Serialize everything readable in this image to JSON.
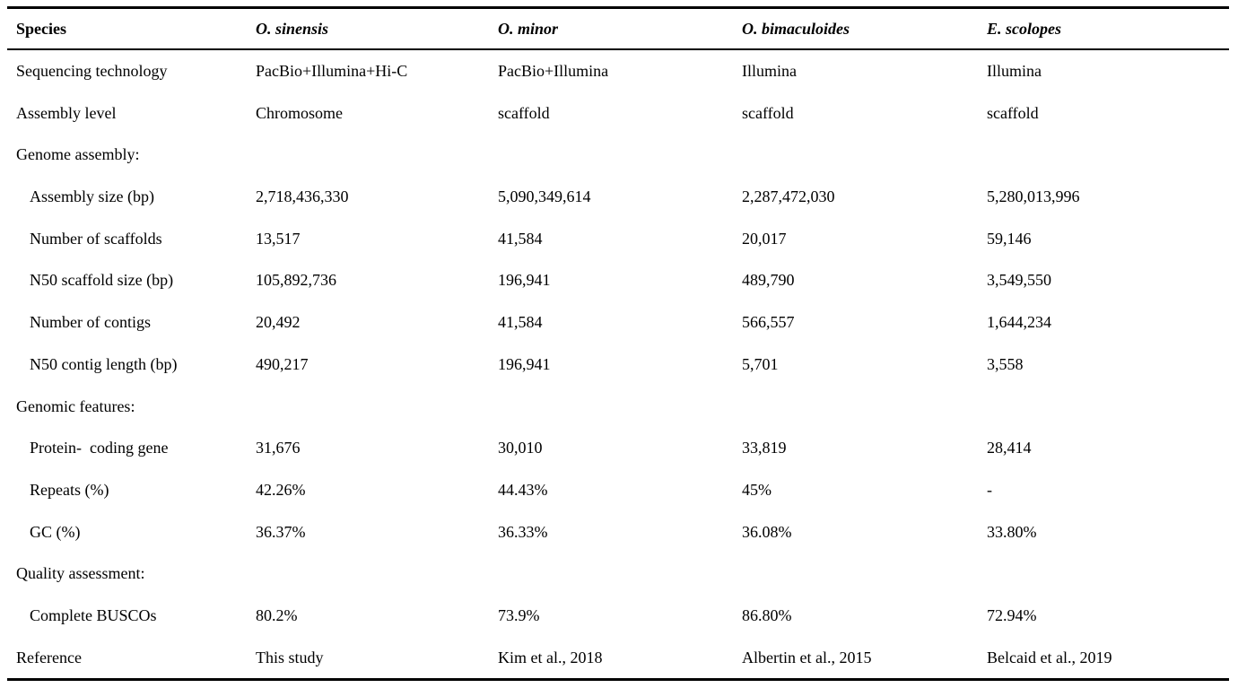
{
  "table": {
    "header": {
      "row_label_column": "Species",
      "species": [
        "O. sinensis",
        "O. minor",
        "O. bimaculoides",
        "E. scolopes"
      ]
    },
    "rows": [
      {
        "label": "Sequencing technology",
        "indent": false,
        "section": false,
        "values": [
          "PacBio+Illumina+Hi-C",
          "PacBio+Illumina",
          "Illumina",
          "Illumina"
        ]
      },
      {
        "label": "Assembly level",
        "indent": false,
        "section": false,
        "values": [
          "Chromosome",
          "scaffold",
          "scaffold",
          "scaffold"
        ]
      },
      {
        "label": "Genome assembly:",
        "indent": false,
        "section": true,
        "values": [
          "",
          "",
          "",
          ""
        ]
      },
      {
        "label": "Assembly size (bp)",
        "indent": true,
        "section": false,
        "values": [
          "2,718,436,330",
          "5,090,349,614",
          "2,287,472,030",
          "5,280,013,996"
        ]
      },
      {
        "label": "Number of scaffolds",
        "indent": true,
        "section": false,
        "values": [
          "13,517",
          "41,584",
          "20,017",
          "59,146"
        ]
      },
      {
        "label": "N50 scaffold size (bp)",
        "indent": true,
        "section": false,
        "values": [
          "105,892,736",
          "196,941",
          "489,790",
          "3,549,550"
        ]
      },
      {
        "label": "Number of contigs",
        "indent": true,
        "section": false,
        "values": [
          "20,492",
          "41,584",
          "566,557",
          "1,644,234"
        ]
      },
      {
        "label": "N50 contig length (bp)",
        "indent": true,
        "section": false,
        "values": [
          "490,217",
          "196,941",
          "5,701",
          "3,558"
        ]
      },
      {
        "label": "Genomic features:",
        "indent": false,
        "section": true,
        "values": [
          "",
          "",
          "",
          ""
        ]
      },
      {
        "label": "Protein-  coding gene",
        "indent": true,
        "section": false,
        "values": [
          "31,676",
          "30,010",
          "33,819",
          "28,414"
        ]
      },
      {
        "label": "Repeats (%)",
        "indent": true,
        "section": false,
        "values": [
          "42.26%",
          "44.43%",
          "45%",
          "-"
        ]
      },
      {
        "label": "GC (%)",
        "indent": true,
        "section": false,
        "values": [
          "36.37%",
          "36.33%",
          "36.08%",
          "33.80%"
        ]
      },
      {
        "label": "Quality assessment:",
        "indent": false,
        "section": true,
        "values": [
          "",
          "",
          "",
          ""
        ]
      },
      {
        "label": "Complete BUSCOs",
        "indent": true,
        "section": false,
        "values": [
          "80.2%",
          "73.9%",
          "86.80%",
          "72.94%"
        ]
      },
      {
        "label": "Reference",
        "indent": false,
        "section": false,
        "values": [
          "This study",
          "Kim et al., 2018",
          "Albertin et al., 2015",
          "Belcaid et al., 2019"
        ]
      }
    ],
    "colors": {
      "text": "#000000",
      "rule": "#000000",
      "background": "#ffffff"
    }
  }
}
